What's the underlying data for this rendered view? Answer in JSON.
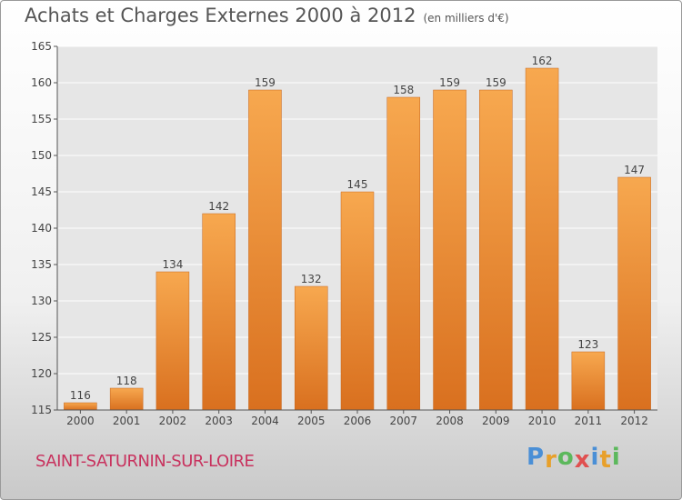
{
  "title": "Achats et Charges Externes 2000 à 2012",
  "subtitle": "(en milliers d'€)",
  "commune": "SAINT-SATURNIN-SUR-LOIRE",
  "logo": {
    "letters": [
      "P",
      "r",
      "o",
      "x",
      "i",
      "t",
      "i"
    ],
    "colors": [
      "#4a8fd6",
      "#e8a02a",
      "#5cb85c",
      "#e05050",
      "#4a8fd6",
      "#e8a02a",
      "#5cb85c"
    ]
  },
  "chart_data": {
    "type": "bar",
    "categories": [
      "2000",
      "2001",
      "2002",
      "2003",
      "2004",
      "2005",
      "2006",
      "2007",
      "2008",
      "2009",
      "2010",
      "2011",
      "2012"
    ],
    "values": [
      116,
      118,
      134,
      142,
      159,
      132,
      145,
      158,
      159,
      159,
      162,
      123,
      147
    ],
    "yticks": [
      115,
      120,
      125,
      130,
      135,
      140,
      145,
      150,
      155,
      160,
      165
    ],
    "ylim": [
      115,
      165
    ],
    "grid": true,
    "bar_color_top": "#f7a84f",
    "bar_color_bottom": "#d9701f"
  }
}
